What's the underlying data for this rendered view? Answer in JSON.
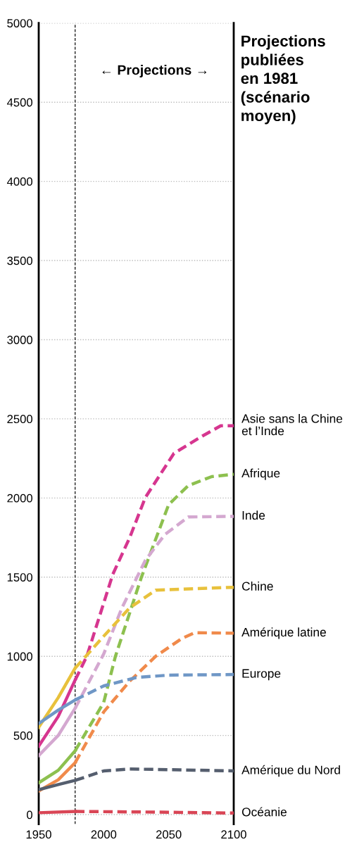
{
  "chart_data": {
    "type": "line",
    "title": "Projections\npubliées\nen 1981\n(scénario\nmoyen)",
    "annotations": [
      "← Projections →"
    ],
    "xlim": [
      1950,
      2100
    ],
    "xticks": [
      1950,
      2000,
      2050,
      2100
    ],
    "ylim": [
      -60,
      5000
    ],
    "yticks": [
      0,
      500,
      1000,
      1500,
      2000,
      2500,
      3000,
      3500,
      4000,
      4500,
      5000
    ],
    "grid": "y",
    "legend": false,
    "marker": "none",
    "ref_lines": [
      {
        "axis": "x",
        "value": 1978,
        "label": null,
        "color": "#222222",
        "line_style": "dashed"
      }
    ],
    "series": [
      {
        "color": "#d6368f",
        "line_style": "solid",
        "x": [
          1950,
          1965,
          1978
        ],
        "values": [
          433,
          620,
          850
        ]
      },
      {
        "name": "Asie sans la Chine\net l’Inde",
        "color": "#d6368f",
        "line_style": "dashed",
        "x": [
          1978,
          1987,
          2007,
          2020,
          2032,
          2054,
          2076,
          2090,
          2100
        ],
        "values": [
          850,
          1000,
          1518,
          1750,
          2003,
          2282,
          2392,
          2456,
          2456
        ]
      },
      {
        "color": "#8dc04f",
        "line_style": "solid",
        "x": [
          1950,
          1965,
          1978
        ],
        "values": [
          201,
          280,
          403
        ]
      },
      {
        "name": "Afrique",
        "color": "#8dc04f",
        "line_style": "dashed",
        "x": [
          1978,
          2000,
          2009,
          2029,
          2050,
          2065,
          2083,
          2100
        ],
        "values": [
          403,
          709,
          1000,
          1500,
          1959,
          2078,
          2135,
          2150
        ]
      },
      {
        "color": "#d4a8d0",
        "line_style": "solid",
        "x": [
          1950,
          1965,
          1978
        ],
        "values": [
          373,
          500,
          672
        ]
      },
      {
        "name": "Inde",
        "color": "#d4a8d0",
        "line_style": "dashed",
        "x": [
          1978,
          2000,
          2014,
          2032,
          2047,
          2065,
          2100
        ],
        "values": [
          672,
          1015,
          1306,
          1606,
          1769,
          1880,
          1884
        ]
      },
      {
        "color": "#e8c13c",
        "line_style": "solid",
        "x": [
          1950,
          1965,
          1978
        ],
        "values": [
          552,
          739,
          925
        ]
      },
      {
        "name": "Chine",
        "color": "#e8c13c",
        "line_style": "dashed",
        "x": [
          1978,
          2000,
          2020,
          2040,
          2100
        ],
        "values": [
          925,
          1127,
          1306,
          1418,
          1436
        ]
      },
      {
        "color": "#f08a4b",
        "line_style": "solid",
        "x": [
          1950,
          1965,
          1978
        ],
        "values": [
          149,
          220,
          328
        ]
      },
      {
        "name": "Amérique latine",
        "color": "#f08a4b",
        "line_style": "dashed",
        "x": [
          1978,
          2000,
          2020,
          2040,
          2060,
          2070,
          2100
        ],
        "values": [
          328,
          649,
          843,
          1000,
          1112,
          1149,
          1146
        ]
      },
      {
        "color": "#6f97c6",
        "line_style": "solid",
        "x": [
          1950,
          1965,
          1978
        ],
        "values": [
          575,
          660,
          724
        ]
      },
      {
        "name": "Europe",
        "color": "#6f97c6",
        "line_style": "dashed",
        "x": [
          1978,
          2000,
          2025,
          2050,
          2100
        ],
        "values": [
          724,
          813,
          866,
          881,
          885
        ]
      },
      {
        "color": "#555e6e",
        "line_style": "solid",
        "x": [
          1950,
          1965,
          1978
        ],
        "values": [
          157,
          190,
          216
        ]
      },
      {
        "name": "Amérique du Nord",
        "color": "#555e6e",
        "line_style": "dashed",
        "x": [
          1978,
          2000,
          2020,
          2050,
          2100
        ],
        "values": [
          216,
          276,
          288,
          284,
          276
        ]
      },
      {
        "color": "#d94555",
        "line_style": "solid",
        "x": [
          1950,
          1978
        ],
        "values": [
          12,
          20
        ]
      },
      {
        "name": "Océanie",
        "color": "#d94555",
        "line_style": "dashed",
        "x": [
          1978,
          2050,
          2100
        ],
        "values": [
          20,
          15,
          10
        ]
      }
    ]
  }
}
